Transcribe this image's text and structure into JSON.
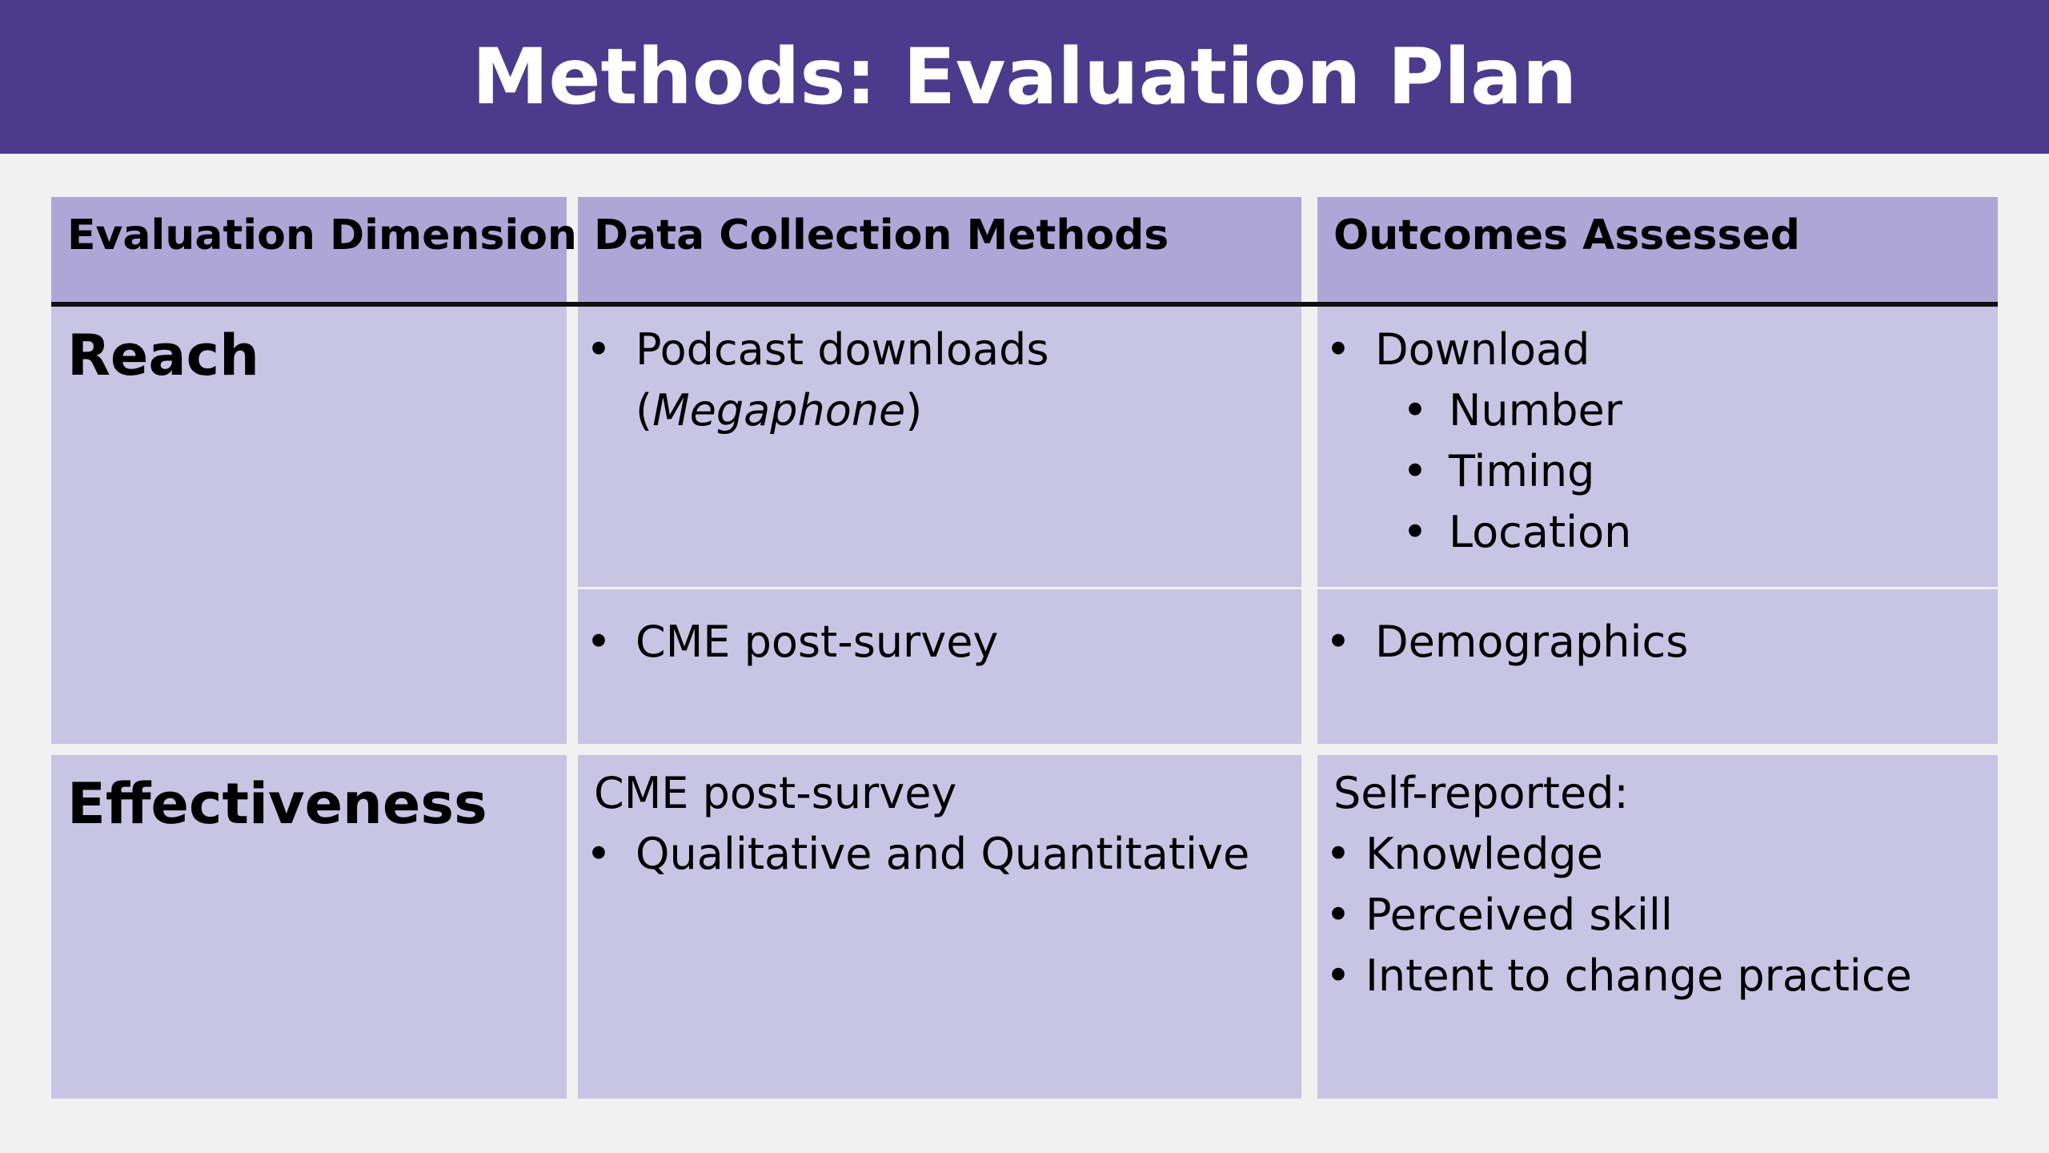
{
  "title": "Methods: Evaluation Plan",
  "table": {
    "headers": [
      "Evaluation Dimension",
      "Data Collection Methods",
      "Outcomes Assessed"
    ],
    "reach": {
      "dimension": "Reach",
      "methods_1": {
        "bullet": "Podcast downloads",
        "cont_open": "(",
        "cont_italic": "Megaphone",
        "cont_close": ")"
      },
      "outcomes_1": {
        "bullet": "Download",
        "sub": [
          "Number",
          "Timing",
          "Location"
        ]
      },
      "methods_2": "CME post-survey",
      "outcomes_2": "Demographics"
    },
    "effectiveness": {
      "dimension": "Effectiveness",
      "methods_intro": "CME post-survey",
      "methods_bullets": [
        "Qualitative and Quantitative"
      ],
      "outcomes_intro": "Self-reported:",
      "outcomes_bullets": [
        "Knowledge",
        "Perceived skill",
        "Intent to change practice"
      ]
    }
  },
  "colors": {
    "banner": "#4b3b8c",
    "header_row": "#afa6d8",
    "body_cells": "#c8c4e4",
    "background": "#f1f1f1"
  }
}
